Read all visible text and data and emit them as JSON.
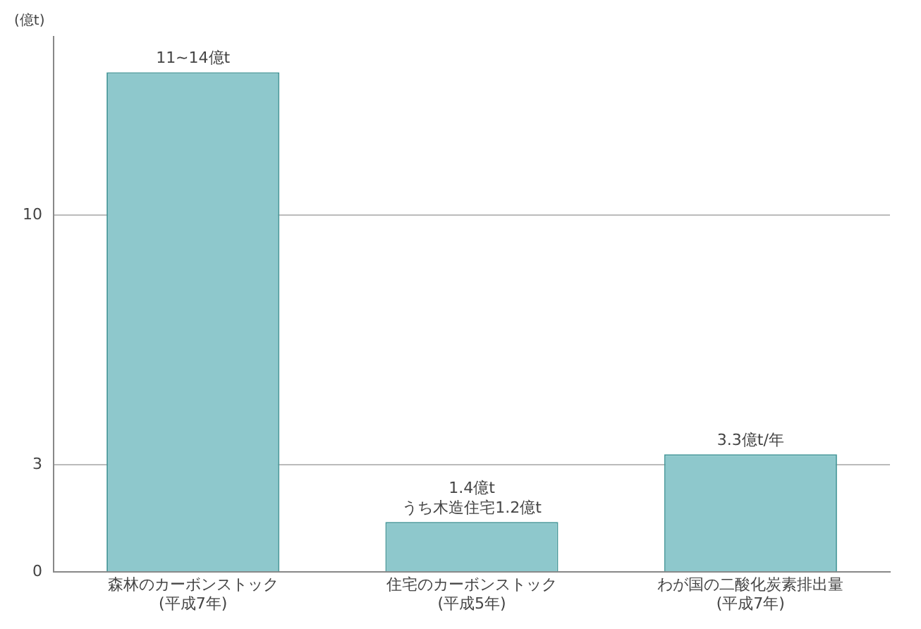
{
  "chart_data": {
    "type": "bar",
    "ylabel": "(億t)",
    "categories": [
      "森林のカーボンストック\n(平成7年)",
      "住宅のカーボンストック\n(平成5年)",
      "わが国の二酸化炭素排出量\n(平成7年)"
    ],
    "values": [
      14,
      1.4,
      3.3
    ],
    "value_labels": [
      "11~14億t",
      "1.4億t\nうち木造住宅1.2億t",
      "3.3億t/年"
    ],
    "color": "#8ec8cc",
    "ylim": [
      0,
      15
    ],
    "yticks": [
      0,
      3,
      10
    ],
    "grid": "y",
    "legend": false
  }
}
